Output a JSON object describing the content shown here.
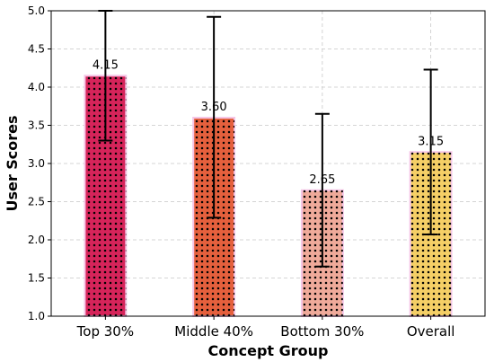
{
  "chart_data": {
    "type": "bar",
    "title": "",
    "xlabel": "Concept Group",
    "ylabel": "User Scores",
    "categories": [
      "Top 30%",
      "Middle 40%",
      "Bottom 30%",
      "Overall"
    ],
    "values": [
      4.15,
      3.6,
      2.65,
      3.15
    ],
    "value_labels": [
      "4.15",
      "3.60",
      "2.65",
      "3.15"
    ],
    "error_low": [
      3.3,
      2.29,
      1.65,
      2.07
    ],
    "error_high": [
      5.0,
      4.92,
      3.65,
      4.23
    ],
    "ylim": [
      1.0,
      5.0
    ],
    "yticks": [
      "1.0",
      "1.5",
      "2.0",
      "2.5",
      "3.0",
      "3.5",
      "4.0",
      "4.5",
      "5.0"
    ],
    "grid": true,
    "bar_colors": [
      "#d6245a",
      "#e5603d",
      "#efaa9a",
      "#f5cf66"
    ],
    "bar_pattern": "dotted",
    "edge_color": "#f5c6e6",
    "error_bar_color": "#000000"
  }
}
